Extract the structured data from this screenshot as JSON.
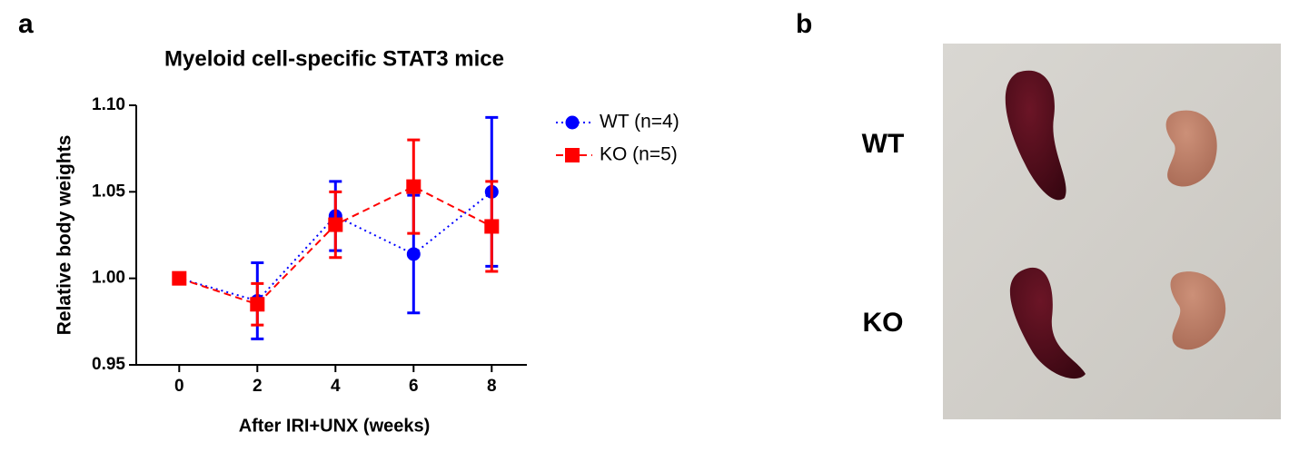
{
  "panel_labels": [
    "a",
    "b"
  ],
  "chart_data": {
    "type": "line",
    "title": "Myeloid cell-specific STAT3 mice",
    "x_label": "After IRI+UNX (weeks)",
    "y_label": "Relative body weights",
    "x": [
      0,
      2,
      4,
      6,
      8
    ],
    "xlim": [
      -1.1,
      8.9
    ],
    "xticks": [
      0,
      2,
      4,
      6,
      8
    ],
    "ylim": [
      0.95,
      1.1
    ],
    "yticks": [
      {
        "value": 1.1,
        "label": "1.10"
      },
      1.05,
      {
        "value": 1.0,
        "label": "1.00"
      },
      0.95
    ],
    "legend": "right",
    "series": [
      {
        "name": "WT (n=4)",
        "color": "#0000ff",
        "linestyle": "dotted",
        "marker": "circle",
        "values": [
          1.0,
          0.987,
          1.036,
          1.014,
          1.05
        ],
        "errors": [
          0,
          0.022,
          0.02,
          0.034,
          0.043
        ]
      },
      {
        "name": "KO (n=5)",
        "color": "#ff0000",
        "linestyle": "dashed",
        "marker": "square",
        "values": [
          1.0,
          0.985,
          1.031,
          1.053,
          1.03
        ],
        "errors": [
          0,
          0.012,
          0.019,
          0.027,
          0.026
        ]
      }
    ]
  },
  "photo": {
    "labels": [
      "WT",
      "KO"
    ]
  }
}
